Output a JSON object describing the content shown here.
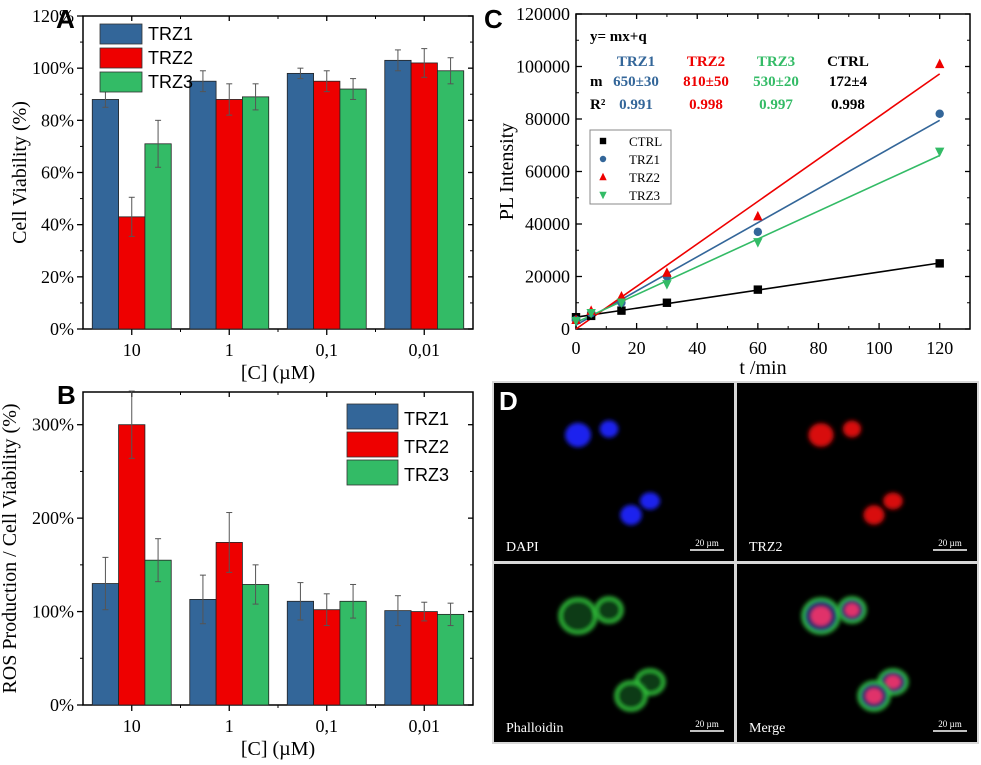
{
  "colors": {
    "TRZ1": "#336699",
    "TRZ2": "#ee0000",
    "TRZ3": "#33bb66",
    "CTRL": "#000000"
  },
  "chart_data": [
    {
      "panel": "A",
      "type": "bar",
      "title": "",
      "xlabel": "[C] (µM)",
      "ylabel": "Cell Viability (%)",
      "categories": [
        "10",
        "1",
        "0,1",
        "0,01"
      ],
      "ylim": [
        0,
        120
      ],
      "yticks": [
        0,
        20,
        40,
        60,
        80,
        100,
        120
      ],
      "ytick_labels": [
        "0%",
        "20%",
        "40%",
        "60%",
        "80%",
        "100%",
        "120%"
      ],
      "legend": "top-left",
      "series": [
        {
          "name": "TRZ1",
          "values": [
            88,
            95,
            98,
            103
          ],
          "errors": [
            3,
            4,
            2,
            4
          ]
        },
        {
          "name": "TRZ2",
          "values": [
            43,
            88,
            95,
            102
          ],
          "errors": [
            7.5,
            6,
            4,
            5.5
          ]
        },
        {
          "name": "TRZ3",
          "values": [
            71,
            89,
            92,
            99
          ],
          "errors": [
            9,
            5,
            4,
            5
          ]
        }
      ]
    },
    {
      "panel": "B",
      "type": "bar",
      "title": "",
      "xlabel": "[C] (µM)",
      "ylabel": "ROS Production / Cell Viability (%)",
      "categories": [
        "10",
        "1",
        "0,1",
        "0,01"
      ],
      "ylim": [
        0,
        335
      ],
      "yticks": [
        0,
        100,
        200,
        300
      ],
      "ytick_labels": [
        "0%",
        "100%",
        "200%",
        "300%"
      ],
      "legend": "top-right",
      "series": [
        {
          "name": "TRZ1",
          "values": [
            130,
            113,
            111,
            101
          ],
          "errors": [
            28,
            26,
            20,
            16
          ]
        },
        {
          "name": "TRZ2",
          "values": [
            300,
            174,
            102,
            100
          ],
          "errors": [
            36,
            32,
            17,
            10
          ]
        },
        {
          "name": "TRZ3",
          "values": [
            155,
            129,
            111,
            97
          ],
          "errors": [
            23,
            21,
            18,
            12
          ]
        }
      ]
    },
    {
      "panel": "C",
      "type": "scatter",
      "title": "",
      "xlabel": "t /min",
      "ylabel": "PL Intensity",
      "xlim": [
        0,
        130
      ],
      "ylim": [
        0,
        120000
      ],
      "xticks": [
        0,
        20,
        40,
        60,
        80,
        100,
        120
      ],
      "yticks": [
        0,
        20000,
        40000,
        60000,
        80000,
        100000,
        120000
      ],
      "legend": "center-left",
      "equation": "y= mx+q",
      "fit_table": {
        "row_m_label": "m",
        "row_r2_label": "R²",
        "columns": [
          {
            "name": "TRZ1",
            "m": "650±30",
            "r2": "0.991"
          },
          {
            "name": "TRZ2",
            "m": "810±50",
            "r2": "0.998"
          },
          {
            "name": "TRZ3",
            "m": "530±20",
            "r2": "0.997"
          },
          {
            "name": "CTRL",
            "m": "172±4",
            "r2": "0.998"
          }
        ]
      },
      "series": [
        {
          "name": "CTRL",
          "marker": "square",
          "x": [
            0,
            5,
            15,
            30,
            60,
            120
          ],
          "y": [
            4500,
            5000,
            7000,
            10000,
            15000,
            25000
          ],
          "fit": {
            "m": 172,
            "q": 4500
          }
        },
        {
          "name": "TRZ1",
          "marker": "circle",
          "x": [
            0,
            5,
            15,
            30,
            60,
            120
          ],
          "y": [
            3500,
            6000,
            10000,
            20000,
            37000,
            82000
          ],
          "fit": {
            "m": 650,
            "q": 1500
          }
        },
        {
          "name": "TRZ2",
          "marker": "triangle-up",
          "x": [
            0,
            5,
            15,
            30,
            60,
            120
          ],
          "y": [
            3500,
            7000,
            12500,
            21500,
            43000,
            101000
          ],
          "fit": {
            "m": 810,
            "q": 0
          }
        },
        {
          "name": "TRZ3",
          "marker": "triangle-down",
          "x": [
            0,
            5,
            15,
            30,
            60,
            120
          ],
          "y": [
            3000,
            6000,
            10000,
            17000,
            33000,
            67500
          ],
          "fit": {
            "m": 530,
            "q": 2500
          }
        }
      ]
    }
  ],
  "panels": {
    "A": {
      "letter": "A"
    },
    "B": {
      "letter": "B"
    },
    "C": {
      "letter": "C"
    },
    "D": {
      "letter": "D",
      "images": [
        {
          "label": "DAPI",
          "scale_bar": "20 µm",
          "stain": "blue"
        },
        {
          "label": "TRZ2",
          "scale_bar": "20 µm",
          "stain": "red"
        },
        {
          "label": "Phalloidin",
          "scale_bar": "20 µm",
          "stain": "green"
        },
        {
          "label": "Merge",
          "scale_bar": "20 µm",
          "stain": "merge"
        }
      ]
    }
  }
}
